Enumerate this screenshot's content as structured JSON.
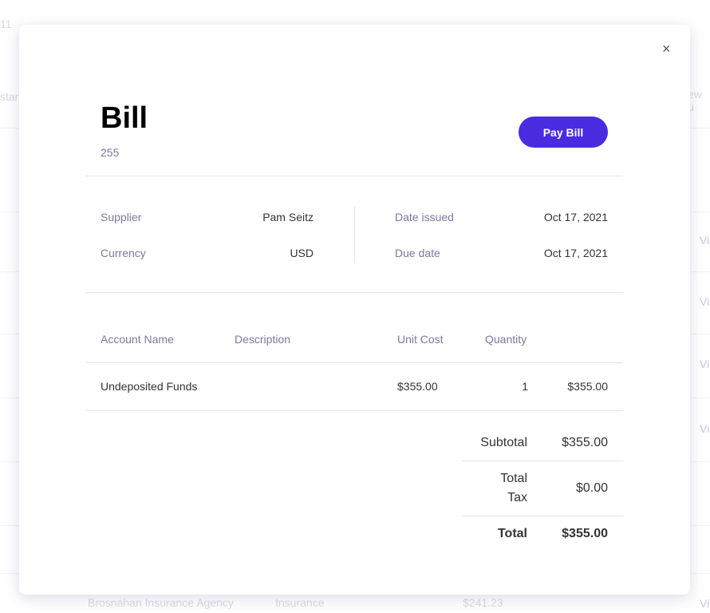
{
  "background": {
    "fragments": [
      "11",
      "stan",
      "ew u"
    ],
    "row_links": [
      "Vi",
      "Vi",
      "Vi",
      "Vi",
      "Vi"
    ],
    "last_row": {
      "supplier": "Brosnahan Insurance Agency",
      "category": "Insurance",
      "amount": "$241.23"
    }
  },
  "modal": {
    "close_label": "×",
    "title": "Bill",
    "bill_number": "255",
    "pay_button": "Pay Bill",
    "details": {
      "supplier_label": "Supplier",
      "supplier": "Pam Seitz",
      "currency_label": "Currency",
      "currency": "USD",
      "date_issued_label": "Date issued",
      "date_issued": "Oct 17, 2021",
      "due_date_label": "Due date",
      "due_date": "Oct 17, 2021"
    },
    "table": {
      "headers": [
        "Account Name",
        "Description",
        "Unit Cost",
        "Quantity",
        ""
      ],
      "rows": [
        {
          "account": "Undeposited Funds",
          "description": "",
          "unit_cost": "$355.00",
          "quantity": "1",
          "amount": "$355.00"
        }
      ]
    },
    "totals": {
      "subtotal_label": "Subtotal",
      "subtotal": "$355.00",
      "tax_label_1": "Total",
      "tax_label_2": "Tax",
      "tax": "$0.00",
      "total_label": "Total",
      "total": "$355.00"
    }
  },
  "colors": {
    "accent": "#4a2be0",
    "label": "#7a7aa0"
  }
}
